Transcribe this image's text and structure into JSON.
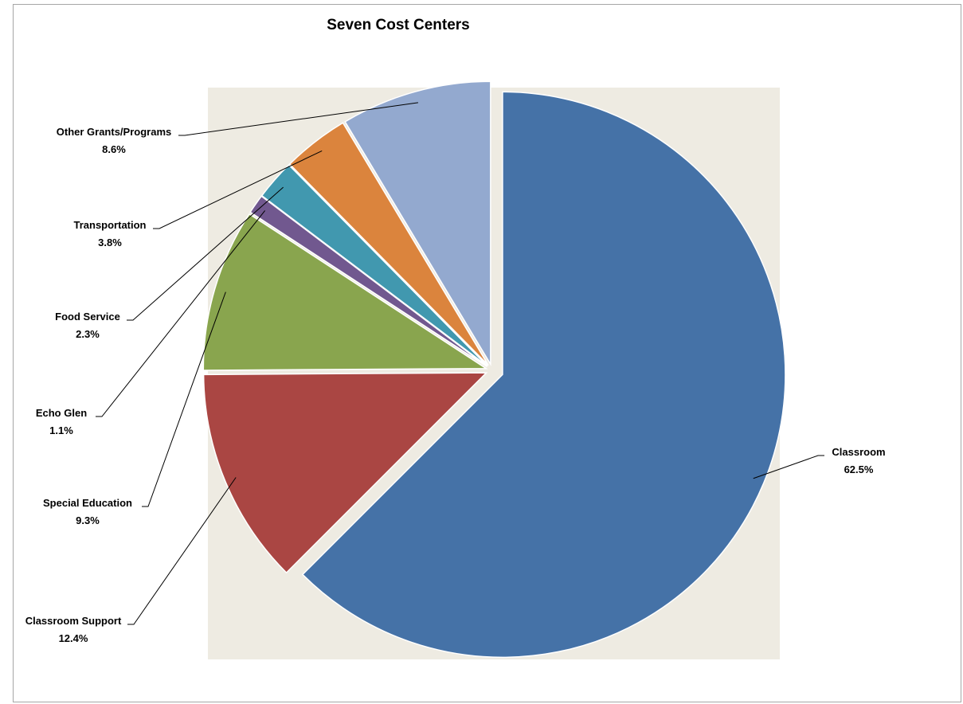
{
  "chart_data": {
    "type": "pie",
    "title": "Seven Cost Centers",
    "plot_background": "#eeebe2",
    "slices": [
      {
        "name": "Classroom",
        "percent_label": "62.5%",
        "value": 62.5,
        "color": "#4572a7"
      },
      {
        "name": "Classroom Support",
        "percent_label": "12.4%",
        "value": 12.4,
        "color": "#aa4643"
      },
      {
        "name": "Special Education",
        "percent_label": "9.3%",
        "value": 9.3,
        "color": "#89a54e"
      },
      {
        "name": "Echo Glen",
        "percent_label": "1.1%",
        "value": 1.1,
        "color": "#71588f"
      },
      {
        "name": "Food Service",
        "percent_label": "2.3%",
        "value": 2.3,
        "color": "#4198af"
      },
      {
        "name": "Transportation",
        "percent_label": "3.8%",
        "value": 3.8,
        "color": "#db843d"
      },
      {
        "name": "Other Grants/Programs",
        "percent_label": "8.6%",
        "value": 8.6,
        "color": "#93a9cf"
      }
    ]
  }
}
